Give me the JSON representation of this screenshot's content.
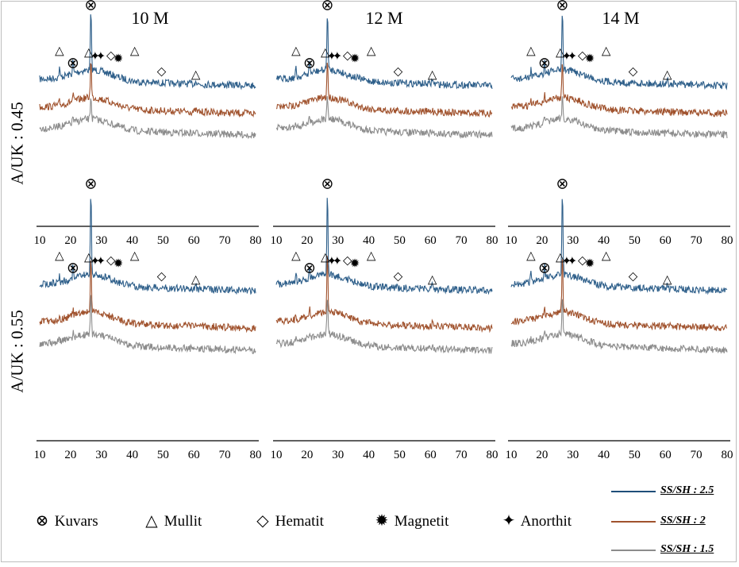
{
  "chart_data": {
    "type": "line",
    "title": "",
    "xlabel": "",
    "ylabel": "",
    "column_titles": [
      "10 M",
      "12 M",
      "14 M"
    ],
    "row_labels": [
      "A/UK : 0.45",
      "A/UK : 0.55"
    ],
    "xlim": [
      10,
      80
    ],
    "x_ticks": [
      "10",
      "20",
      "30",
      "40",
      "50",
      "60",
      "70",
      "80"
    ],
    "series": [
      {
        "name": "SS/SH : 2.5",
        "color": "#2e5f8a"
      },
      {
        "name": "SS/SH : 2",
        "color": "#a0522d"
      },
      {
        "name": "SS/SH : 1.5",
        "color": "#8c8c8c"
      }
    ],
    "phases": [
      {
        "name": "Kuvars",
        "icon": "circled-x-icon",
        "symbol": "⊗"
      },
      {
        "name": "Mullit",
        "icon": "triangle-icon",
        "symbol": "△"
      },
      {
        "name": "Hematit",
        "icon": "diamond-icon",
        "symbol": "◇"
      },
      {
        "name": "Magnetit",
        "icon": "star-burst-icon",
        "symbol": "✹"
      },
      {
        "name": "Anorthit",
        "icon": "four-point-star-icon",
        "symbol": "✦"
      }
    ],
    "panels": [
      {
        "row": 0,
        "col": 0,
        "peaks": [
          {
            "phase": "Kuvars",
            "x": 26.6
          },
          {
            "phase": "Kuvars",
            "x": 20.8
          },
          {
            "phase": "Mullit",
            "x": 16.4
          },
          {
            "phase": "Mullit",
            "x": 25.9
          },
          {
            "phase": "Mullit",
            "x": 40.8
          },
          {
            "phase": "Mullit",
            "x": 60.6
          },
          {
            "phase": "Anorthit",
            "x": 28.0
          },
          {
            "phase": "Anorthit",
            "x": 29.8
          },
          {
            "phase": "Hematit",
            "x": 33.1
          },
          {
            "phase": "Hematit",
            "x": 49.5
          },
          {
            "phase": "Magnetit",
            "x": 35.5
          }
        ]
      },
      {
        "row": 0,
        "col": 1,
        "peaks": [
          {
            "phase": "Kuvars",
            "x": 26.6
          },
          {
            "phase": "Kuvars",
            "x": 20.8
          },
          {
            "phase": "Mullit",
            "x": 16.4
          },
          {
            "phase": "Mullit",
            "x": 25.9
          },
          {
            "phase": "Mullit",
            "x": 40.8
          },
          {
            "phase": "Mullit",
            "x": 60.6
          },
          {
            "phase": "Anorthit",
            "x": 28.0
          },
          {
            "phase": "Anorthit",
            "x": 29.8
          },
          {
            "phase": "Hematit",
            "x": 33.1
          },
          {
            "phase": "Hematit",
            "x": 49.5
          },
          {
            "phase": "Magnetit",
            "x": 35.5
          }
        ]
      },
      {
        "row": 0,
        "col": 2,
        "peaks": [
          {
            "phase": "Kuvars",
            "x": 26.6
          },
          {
            "phase": "Kuvars",
            "x": 20.8
          },
          {
            "phase": "Mullit",
            "x": 16.4
          },
          {
            "phase": "Mullit",
            "x": 25.9
          },
          {
            "phase": "Mullit",
            "x": 40.8
          },
          {
            "phase": "Mullit",
            "x": 60.6
          },
          {
            "phase": "Anorthit",
            "x": 28.0
          },
          {
            "phase": "Anorthit",
            "x": 29.8
          },
          {
            "phase": "Hematit",
            "x": 33.1
          },
          {
            "phase": "Hematit",
            "x": 49.5
          },
          {
            "phase": "Magnetit",
            "x": 35.5
          }
        ]
      },
      {
        "row": 1,
        "col": 0,
        "peaks": [
          {
            "phase": "Kuvars",
            "x": 26.6
          },
          {
            "phase": "Kuvars",
            "x": 20.8
          },
          {
            "phase": "Mullit",
            "x": 16.4
          },
          {
            "phase": "Mullit",
            "x": 25.9
          },
          {
            "phase": "Mullit",
            "x": 40.8
          },
          {
            "phase": "Mullit",
            "x": 60.6
          },
          {
            "phase": "Anorthit",
            "x": 28.0
          },
          {
            "phase": "Anorthit",
            "x": 29.8
          },
          {
            "phase": "Hematit",
            "x": 33.1
          },
          {
            "phase": "Hematit",
            "x": 49.5
          },
          {
            "phase": "Magnetit",
            "x": 35.5
          }
        ]
      },
      {
        "row": 1,
        "col": 1,
        "peaks": [
          {
            "phase": "Kuvars",
            "x": 26.6
          },
          {
            "phase": "Kuvars",
            "x": 20.8
          },
          {
            "phase": "Mullit",
            "x": 16.4
          },
          {
            "phase": "Mullit",
            "x": 25.9
          },
          {
            "phase": "Mullit",
            "x": 40.8
          },
          {
            "phase": "Mullit",
            "x": 60.6
          },
          {
            "phase": "Anorthit",
            "x": 28.0
          },
          {
            "phase": "Anorthit",
            "x": 29.8
          },
          {
            "phase": "Hematit",
            "x": 33.1
          },
          {
            "phase": "Hematit",
            "x": 49.5
          },
          {
            "phase": "Magnetit",
            "x": 35.5
          }
        ]
      },
      {
        "row": 1,
        "col": 2,
        "peaks": [
          {
            "phase": "Kuvars",
            "x": 26.6
          },
          {
            "phase": "Kuvars",
            "x": 20.8
          },
          {
            "phase": "Mullit",
            "x": 16.4
          },
          {
            "phase": "Mullit",
            "x": 25.9
          },
          {
            "phase": "Mullit",
            "x": 40.8
          },
          {
            "phase": "Mullit",
            "x": 60.6
          },
          {
            "phase": "Anorthit",
            "x": 28.0
          },
          {
            "phase": "Anorthit",
            "x": 29.8
          },
          {
            "phase": "Hematit",
            "x": 33.1
          },
          {
            "phase": "Hematit",
            "x": 49.5
          },
          {
            "phase": "Magnetit",
            "x": 35.5
          }
        ]
      }
    ],
    "grid": false,
    "legend_placement": "bottom"
  }
}
